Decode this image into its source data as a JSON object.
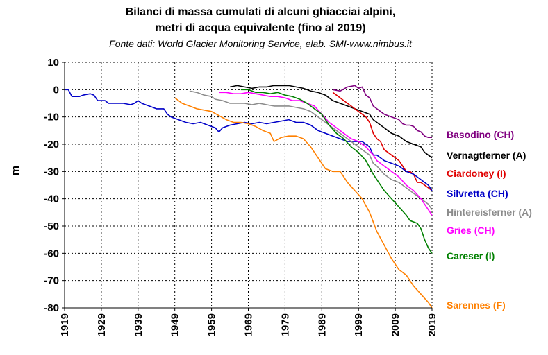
{
  "chart_data": {
    "type": "line",
    "title_line1": "Bilanci di massa cumulati di alcuni ghiacciai alpini,",
    "title_line2": "metri di acqua equivalente (fino al 2019)",
    "subtitle": "Fonte dati: World Glacier Monitoring Service, elab. SMI-www.nimbus.it",
    "ylabel": "m",
    "xlabel": "",
    "xlim": [
      1919,
      2019
    ],
    "ylim": [
      -80,
      10
    ],
    "x_ticks": [
      "1919",
      "1929",
      "1939",
      "1949",
      "1959",
      "1969",
      "1979",
      "1989",
      "1999",
      "2009",
      "2019"
    ],
    "y_ticks": [
      "10",
      "0",
      "-10",
      "-20",
      "-30",
      "-40",
      "-50",
      "-60",
      "-70",
      "-80"
    ],
    "grid": true,
    "legend": "right (labels beside series ends)",
    "series": [
      {
        "name": "Basodino (CH)",
        "color": "#800080",
        "points": [
          [
            1992,
            0
          ],
          [
            1994,
            -0.5
          ],
          [
            1996,
            1
          ],
          [
            1998,
            1.5
          ],
          [
            1999,
            0.5
          ],
          [
            2000,
            1
          ],
          [
            2001,
            -2
          ],
          [
            2002,
            -3
          ],
          [
            2003,
            -6
          ],
          [
            2004,
            -7
          ],
          [
            2005,
            -8
          ],
          [
            2006,
            -9
          ],
          [
            2007,
            -9.5
          ],
          [
            2008,
            -10
          ],
          [
            2009,
            -10.5
          ],
          [
            2010,
            -11
          ],
          [
            2011,
            -12.5
          ],
          [
            2012,
            -13
          ],
          [
            2013,
            -13
          ],
          [
            2014,
            -13.5
          ],
          [
            2015,
            -15
          ],
          [
            2016,
            -15.5
          ],
          [
            2017,
            -17
          ],
          [
            2018,
            -17.5
          ],
          [
            2019,
            -17.5
          ]
        ]
      },
      {
        "name": "Vernagtferner (A)",
        "color": "#000000",
        "points": [
          [
            1964,
            1
          ],
          [
            1966,
            1.5
          ],
          [
            1968,
            1
          ],
          [
            1970,
            0.5
          ],
          [
            1972,
            1
          ],
          [
            1974,
            1
          ],
          [
            1976,
            1.5
          ],
          [
            1978,
            1.5
          ],
          [
            1980,
            1.5
          ],
          [
            1982,
            1
          ],
          [
            1984,
            0.5
          ],
          [
            1986,
            -0.5
          ],
          [
            1988,
            -1
          ],
          [
            1990,
            -2
          ],
          [
            1992,
            -4
          ],
          [
            1994,
            -5
          ],
          [
            1996,
            -6
          ],
          [
            1998,
            -7
          ],
          [
            2000,
            -8
          ],
          [
            2002,
            -9
          ],
          [
            2003,
            -11
          ],
          [
            2004,
            -12
          ],
          [
            2006,
            -14
          ],
          [
            2008,
            -16
          ],
          [
            2010,
            -17
          ],
          [
            2012,
            -19
          ],
          [
            2014,
            -20
          ],
          [
            2016,
            -21
          ],
          [
            2017,
            -23
          ],
          [
            2018,
            -24
          ],
          [
            2019,
            -25
          ]
        ]
      },
      {
        "name": "Ciardoney (I)",
        "color": "#e00000",
        "points": [
          [
            1992,
            -1
          ],
          [
            1993,
            -2
          ],
          [
            1994,
            -3
          ],
          [
            1995,
            -4
          ],
          [
            1996,
            -5
          ],
          [
            1997,
            -6
          ],
          [
            1998,
            -7
          ],
          [
            1999,
            -8
          ],
          [
            2000,
            -9
          ],
          [
            2001,
            -10
          ],
          [
            2002,
            -12
          ],
          [
            2003,
            -16
          ],
          [
            2004,
            -18
          ],
          [
            2005,
            -19
          ],
          [
            2006,
            -22
          ],
          [
            2007,
            -23
          ],
          [
            2008,
            -24
          ],
          [
            2009,
            -25
          ],
          [
            2010,
            -26
          ],
          [
            2011,
            -28
          ],
          [
            2012,
            -30
          ],
          [
            2013,
            -30
          ],
          [
            2014,
            -31
          ],
          [
            2015,
            -34
          ],
          [
            2016,
            -34
          ],
          [
            2017,
            -35
          ],
          [
            2018,
            -36
          ],
          [
            2019,
            -37
          ]
        ]
      },
      {
        "name": "Silvretta (CH)",
        "color": "#0000c8",
        "points": [
          [
            1919,
            0
          ],
          [
            1920,
            0
          ],
          [
            1921,
            -2.5
          ],
          [
            1923,
            -2.5
          ],
          [
            1924,
            -2
          ],
          [
            1926,
            -1.5
          ],
          [
            1927,
            -2
          ],
          [
            1928,
            -4
          ],
          [
            1930,
            -4
          ],
          [
            1931,
            -5
          ],
          [
            1933,
            -5
          ],
          [
            1935,
            -5
          ],
          [
            1937,
            -5.5
          ],
          [
            1938,
            -5
          ],
          [
            1939,
            -4
          ],
          [
            1940,
            -5
          ],
          [
            1942,
            -6
          ],
          [
            1944,
            -7
          ],
          [
            1946,
            -7
          ],
          [
            1947,
            -9
          ],
          [
            1948,
            -10
          ],
          [
            1950,
            -11
          ],
          [
            1952,
            -12
          ],
          [
            1954,
            -12.5
          ],
          [
            1956,
            -12
          ],
          [
            1958,
            -13
          ],
          [
            1960,
            -14
          ],
          [
            1961,
            -15.5
          ],
          [
            1962,
            -14
          ],
          [
            1964,
            -13
          ],
          [
            1966,
            -12.5
          ],
          [
            1968,
            -12
          ],
          [
            1970,
            -12.5
          ],
          [
            1972,
            -12
          ],
          [
            1974,
            -12.5
          ],
          [
            1976,
            -12
          ],
          [
            1978,
            -11.5
          ],
          [
            1980,
            -11
          ],
          [
            1982,
            -12
          ],
          [
            1984,
            -12
          ],
          [
            1986,
            -13
          ],
          [
            1988,
            -15
          ],
          [
            1990,
            -16
          ],
          [
            1992,
            -17
          ],
          [
            1994,
            -18
          ],
          [
            1996,
            -19
          ],
          [
            1998,
            -19
          ],
          [
            2000,
            -19
          ],
          [
            2002,
            -21
          ],
          [
            2003,
            -24
          ],
          [
            2004,
            -24
          ],
          [
            2006,
            -26
          ],
          [
            2008,
            -27
          ],
          [
            2010,
            -28
          ],
          [
            2012,
            -30
          ],
          [
            2014,
            -31
          ],
          [
            2016,
            -33
          ],
          [
            2018,
            -35
          ],
          [
            2019,
            -37
          ]
        ]
      },
      {
        "name": "Hintereisferner (A)",
        "color": "#8c8c8c",
        "points": [
          [
            1953,
            -0.5
          ],
          [
            1955,
            -1
          ],
          [
            1957,
            -2
          ],
          [
            1959,
            -2.5
          ],
          [
            1960,
            -3.5
          ],
          [
            1962,
            -4
          ],
          [
            1964,
            -5
          ],
          [
            1966,
            -5
          ],
          [
            1968,
            -5
          ],
          [
            1970,
            -5.5
          ],
          [
            1972,
            -5
          ],
          [
            1974,
            -5.5
          ],
          [
            1976,
            -6
          ],
          [
            1978,
            -6
          ],
          [
            1980,
            -6
          ],
          [
            1982,
            -6.5
          ],
          [
            1984,
            -7
          ],
          [
            1986,
            -8
          ],
          [
            1988,
            -10
          ],
          [
            1990,
            -12
          ],
          [
            1992,
            -14
          ],
          [
            1994,
            -16
          ],
          [
            1996,
            -18
          ],
          [
            1998,
            -20
          ],
          [
            2000,
            -22
          ],
          [
            2002,
            -24
          ],
          [
            2003,
            -27
          ],
          [
            2004,
            -28
          ],
          [
            2006,
            -31
          ],
          [
            2008,
            -33
          ],
          [
            2010,
            -34
          ],
          [
            2012,
            -36
          ],
          [
            2014,
            -38
          ],
          [
            2016,
            -40
          ],
          [
            2018,
            -42
          ],
          [
            2019,
            -44
          ]
        ]
      },
      {
        "name": "Gries (CH)",
        "color": "#ff00ff",
        "points": [
          [
            1961,
            -1
          ],
          [
            1963,
            -1
          ],
          [
            1965,
            -1.5
          ],
          [
            1967,
            -1.5
          ],
          [
            1969,
            -1
          ],
          [
            1971,
            -1.5
          ],
          [
            1973,
            -2
          ],
          [
            1975,
            -2.5
          ],
          [
            1977,
            -2.5
          ],
          [
            1979,
            -3
          ],
          [
            1981,
            -4
          ],
          [
            1983,
            -4
          ],
          [
            1985,
            -5
          ],
          [
            1987,
            -6
          ],
          [
            1989,
            -9
          ],
          [
            1991,
            -12
          ],
          [
            1993,
            -14
          ],
          [
            1995,
            -16
          ],
          [
            1997,
            -18
          ],
          [
            1999,
            -19
          ],
          [
            2001,
            -21
          ],
          [
            2003,
            -24
          ],
          [
            2004,
            -26
          ],
          [
            2006,
            -28
          ],
          [
            2008,
            -30
          ],
          [
            2010,
            -32
          ],
          [
            2012,
            -35
          ],
          [
            2014,
            -37
          ],
          [
            2016,
            -40
          ],
          [
            2018,
            -44
          ],
          [
            2019,
            -46
          ]
        ]
      },
      {
        "name": "Careser (I)",
        "color": "#008000",
        "points": [
          [
            1967,
            0
          ],
          [
            1969,
            0
          ],
          [
            1971,
            -1
          ],
          [
            1973,
            -1
          ],
          [
            1975,
            -1.5
          ],
          [
            1977,
            -1
          ],
          [
            1979,
            -2
          ],
          [
            1981,
            -2.5
          ],
          [
            1983,
            -3.5
          ],
          [
            1985,
            -5
          ],
          [
            1987,
            -7
          ],
          [
            1989,
            -9
          ],
          [
            1991,
            -13
          ],
          [
            1993,
            -16
          ],
          [
            1995,
            -18
          ],
          [
            1997,
            -21
          ],
          [
            1999,
            -23
          ],
          [
            2001,
            -26
          ],
          [
            2003,
            -31
          ],
          [
            2004,
            -33
          ],
          [
            2006,
            -37
          ],
          [
            2008,
            -40
          ],
          [
            2010,
            -43
          ],
          [
            2012,
            -46
          ],
          [
            2013,
            -48
          ],
          [
            2015,
            -49
          ],
          [
            2016,
            -51
          ],
          [
            2017,
            -55
          ],
          [
            2018,
            -58
          ],
          [
            2019,
            -60
          ]
        ]
      },
      {
        "name": "Sarennes (F)",
        "color": "#ff8000",
        "points": [
          [
            1949,
            -3
          ],
          [
            1951,
            -5
          ],
          [
            1953,
            -6
          ],
          [
            1955,
            -7
          ],
          [
            1957,
            -7.5
          ],
          [
            1959,
            -8
          ],
          [
            1961,
            -9.5
          ],
          [
            1963,
            -11
          ],
          [
            1965,
            -12
          ],
          [
            1967,
            -12
          ],
          [
            1969,
            -12.5
          ],
          [
            1971,
            -13.5
          ],
          [
            1973,
            -15
          ],
          [
            1975,
            -16
          ],
          [
            1976,
            -19
          ],
          [
            1978,
            -17.5
          ],
          [
            1980,
            -17
          ],
          [
            1982,
            -17
          ],
          [
            1984,
            -18
          ],
          [
            1986,
            -21
          ],
          [
            1988,
            -25
          ],
          [
            1990,
            -29
          ],
          [
            1992,
            -30
          ],
          [
            1994,
            -30
          ],
          [
            1996,
            -34
          ],
          [
            1998,
            -37
          ],
          [
            2000,
            -40
          ],
          [
            2002,
            -45
          ],
          [
            2004,
            -52
          ],
          [
            2006,
            -57
          ],
          [
            2008,
            -62
          ],
          [
            2010,
            -66
          ],
          [
            2012,
            -68
          ],
          [
            2014,
            -72
          ],
          [
            2016,
            -75
          ],
          [
            2018,
            -78
          ],
          [
            2019,
            -80
          ]
        ]
      }
    ]
  }
}
